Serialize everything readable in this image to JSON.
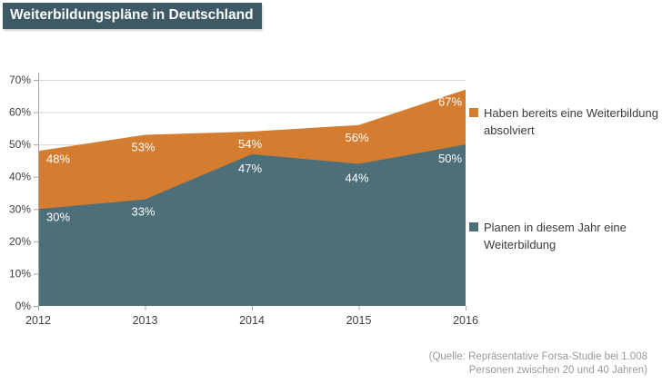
{
  "title": "Weiterbildungspläne in Deutschland",
  "colors": {
    "title_bg": "#3d5a64",
    "orange": "#d47d31",
    "teal": "#4d6f7a",
    "grid": "#d9d9d9",
    "axis": "#a6a6a6",
    "axis_text": "#404040",
    "data_label_text": "#ffffff",
    "legend_text": "#3b3b3b",
    "source_text": "#999999"
  },
  "chart_data": {
    "type": "area",
    "title": "Weiterbildungspläne in Deutschland",
    "categories": [
      "2012",
      "2013",
      "2014",
      "2015",
      "2016"
    ],
    "series": [
      {
        "name": "Haben bereits eine Weiterbildung absolviert",
        "color": "#d47d31",
        "values": [
          48,
          53,
          54,
          56,
          67
        ],
        "data_labels": [
          "48%",
          "53%",
          "54%",
          "56%",
          "67%"
        ]
      },
      {
        "name": "Planen in diesem Jahr eine Weiterbildung",
        "color": "#4d6f7a",
        "values": [
          30,
          33,
          47,
          44,
          50
        ],
        "data_labels": [
          "30%",
          "33%",
          "47%",
          "44%",
          "50%"
        ]
      }
    ],
    "xlabel": "",
    "ylabel": "",
    "ylim": [
      0,
      70
    ],
    "ytick_step": 10,
    "ytick_labels": [
      "0%",
      "10%",
      "20%",
      "30%",
      "40%",
      "50%",
      "60%",
      "70%"
    ],
    "grid": "horizontal",
    "legend_position": "right"
  },
  "legend": {
    "items": [
      {
        "label": "Haben bereits eine Weiterbildung absolviert",
        "color": "#d47d31"
      },
      {
        "label": "Planen in diesem Jahr eine Weiterbildung",
        "color": "#4d6f7a"
      }
    ]
  },
  "source_note": {
    "line1": "(Quelle: Repräsentative Forsa-Studie bei 1.008",
    "line2": "Personen zwischen 20 und 40 Jahren)"
  }
}
